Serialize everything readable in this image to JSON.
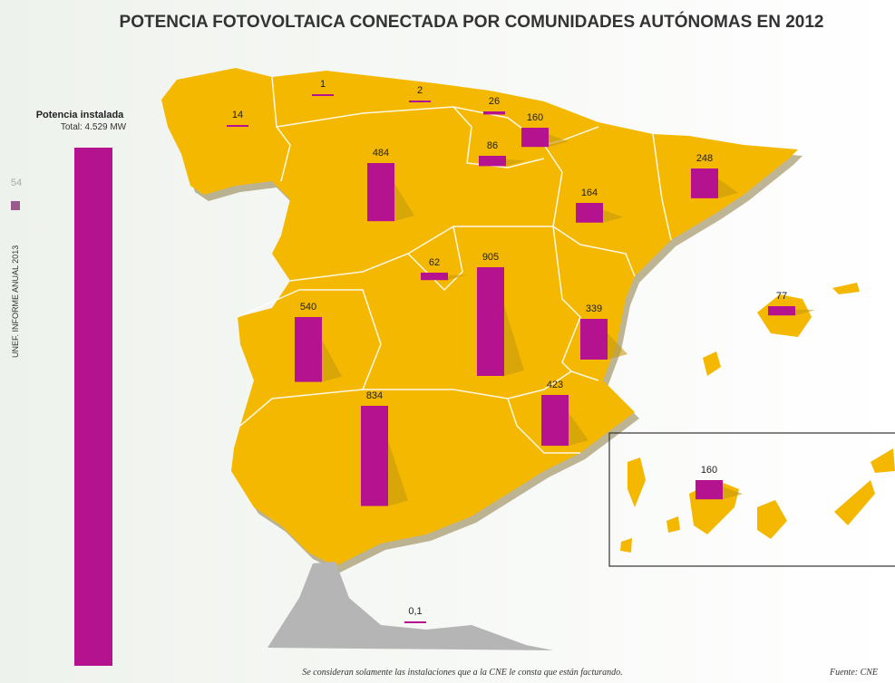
{
  "title": "POTENCIA FOTOVOLTAICA CONECTADA POR COMUNIDADES AUTÓNOMAS EN 2012",
  "total_bar": {
    "heading": "Potencia instalada",
    "total": "Total: 4.529 MW",
    "value": 4529,
    "color": "#b5128f"
  },
  "side": {
    "page": "54",
    "text": "UNEF. INFORME ANUAL 2013"
  },
  "regions": {
    "values": [
      14,
      1,
      2,
      26,
      160,
      86,
      484,
      164,
      248,
      62,
      905,
      339,
      77,
      540,
      834,
      423,
      160,
      0.1
    ],
    "value_labels": [
      "14",
      "1",
      "2",
      "26",
      "160",
      "86",
      "484",
      "164",
      "248",
      "62",
      "905",
      "339",
      "77",
      "540",
      "834",
      "423",
      "160",
      "0,1"
    ],
    "color": "#b5128f"
  },
  "footnote": "Se consideran solamente las instalaciones que a la CNE le consta que están facturando.",
  "source": "Fuente: CNE"
}
